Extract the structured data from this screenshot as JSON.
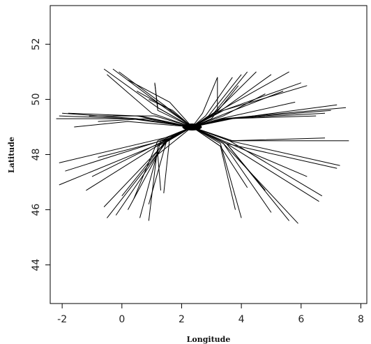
{
  "chart_data": {
    "type": "line",
    "title": "",
    "xlabel": "Longitude",
    "ylabel": "Latitude",
    "xlim": [
      -2.4,
      8.2
    ],
    "ylim": [
      42.6,
      53.4
    ],
    "xticks": [
      -2,
      0,
      2,
      4,
      6,
      8
    ],
    "yticks": [
      44,
      46,
      48,
      50,
      52
    ],
    "grid": false,
    "legend": "none",
    "line_color": "#000000",
    "hub": [
      2.35,
      49.0
    ],
    "series": [
      {
        "x": [
          2.35,
          1.2,
          -0.6
        ],
        "y": [
          49.0,
          49.7,
          51.1
        ]
      },
      {
        "x": [
          2.35,
          1.3,
          -0.3
        ],
        "y": [
          49.0,
          49.8,
          51.1
        ]
      },
      {
        "x": [
          2.35,
          1.4,
          -0.1
        ],
        "y": [
          49.0,
          49.8,
          51.0
        ]
      },
      {
        "x": [
          2.35,
          1.0,
          -0.5
        ],
        "y": [
          49.0,
          49.5,
          50.9
        ]
      },
      {
        "x": [
          2.35,
          1.6,
          0.2
        ],
        "y": [
          49.0,
          49.9,
          50.7
        ]
      },
      {
        "x": [
          2.35,
          1.5,
          0.5
        ],
        "y": [
          49.0,
          49.7,
          50.3
        ]
      },
      {
        "x": [
          2.35,
          1.7,
          0.9
        ],
        "y": [
          49.0,
          49.6,
          50.0
        ]
      },
      {
        "x": [
          2.35,
          1.2,
          1.1
        ],
        "y": [
          49.0,
          49.6,
          50.6
        ]
      },
      {
        "x": [
          2.35,
          0.5,
          -2.0
        ],
        "y": [
          49.0,
          49.3,
          49.5
        ]
      },
      {
        "x": [
          2.35,
          0.4,
          -2.1
        ],
        "y": [
          49.0,
          49.3,
          49.4
        ]
      },
      {
        "x": [
          2.35,
          0.2,
          -1.6
        ],
        "y": [
          49.0,
          49.2,
          49.0
        ]
      },
      {
        "x": [
          2.35,
          0.6,
          -1.1
        ],
        "y": [
          49.0,
          49.4,
          49.4
        ]
      },
      {
        "x": [
          2.35,
          0.8,
          -0.8
        ],
        "y": [
          49.0,
          49.3,
          49.2
        ]
      },
      {
        "x": [
          2.35,
          0.3,
          -2.2
        ],
        "y": [
          49.0,
          49.3,
          49.3
        ]
      },
      {
        "x": [
          2.35,
          0.5,
          -1.8
        ],
        "y": [
          49.0,
          49.4,
          49.5
        ]
      },
      {
        "x": [
          2.35,
          1.1,
          -0.3
        ],
        "y": [
          49.0,
          49.4,
          49.4
        ]
      },
      {
        "x": [
          2.35,
          1.7,
          -0.8
        ],
        "y": [
          49.0,
          48.6,
          47.9
        ]
      },
      {
        "x": [
          2.35,
          1.6,
          -1.9
        ],
        "y": [
          49.0,
          48.6,
          47.4
        ]
      },
      {
        "x": [
          2.35,
          1.5,
          -2.1
        ],
        "y": [
          49.0,
          48.5,
          46.9
        ]
      },
      {
        "x": [
          2.35,
          1.6,
          -1.2
        ],
        "y": [
          49.0,
          48.6,
          46.7
        ]
      },
      {
        "x": [
          2.35,
          1.6,
          -0.6
        ],
        "y": [
          49.0,
          48.6,
          46.1
        ]
      },
      {
        "x": [
          2.35,
          1.6,
          -0.5
        ],
        "y": [
          49.0,
          48.6,
          45.7
        ]
      },
      {
        "x": [
          2.35,
          1.5,
          -0.2
        ],
        "y": [
          49.0,
          48.5,
          45.8
        ]
      },
      {
        "x": [
          2.35,
          1.4,
          0.2
        ],
        "y": [
          49.0,
          48.4,
          46.0
        ]
      },
      {
        "x": [
          2.35,
          1.3,
          0.6
        ],
        "y": [
          49.0,
          48.5,
          45.7
        ]
      },
      {
        "x": [
          2.35,
          1.2,
          0.9
        ],
        "y": [
          49.0,
          48.3,
          45.6
        ]
      },
      {
        "x": [
          2.35,
          1.2,
          0.4
        ],
        "y": [
          49.0,
          48.5,
          46.4
        ]
      },
      {
        "x": [
          2.35,
          1.6,
          1.4
        ],
        "y": [
          49.0,
          48.6,
          46.6
        ]
      },
      {
        "x": [
          2.35,
          1.8,
          -2.1
        ],
        "y": [
          49.0,
          48.7,
          47.7
        ]
      },
      {
        "x": [
          2.35,
          1.6,
          -1.0
        ],
        "y": [
          49.0,
          48.6,
          47.2
        ]
      },
      {
        "x": [
          2.35,
          1.4,
          0.0
        ],
        "y": [
          49.0,
          48.4,
          46.5
        ]
      },
      {
        "x": [
          2.35,
          1.5,
          0.9
        ],
        "y": [
          49.0,
          48.5,
          46.2
        ]
      },
      {
        "x": [
          2.35,
          2.9,
          4.0
        ],
        "y": [
          49.0,
          49.4,
          50.9
        ]
      },
      {
        "x": [
          2.35,
          3.0,
          4.2
        ],
        "y": [
          49.0,
          49.4,
          51.0
        ]
      },
      {
        "x": [
          2.35,
          3.1,
          4.5
        ],
        "y": [
          49.0,
          49.5,
          51.0
        ]
      },
      {
        "x": [
          2.35,
          3.2,
          5.0
        ],
        "y": [
          49.0,
          49.5,
          50.9
        ]
      },
      {
        "x": [
          2.35,
          3.3,
          5.6
        ],
        "y": [
          49.0,
          49.6,
          51.0
        ]
      },
      {
        "x": [
          2.35,
          3.4,
          6.0
        ],
        "y": [
          49.0,
          49.6,
          50.6
        ]
      },
      {
        "x": [
          2.35,
          3.5,
          5.4
        ],
        "y": [
          49.0,
          49.5,
          50.3
        ]
      },
      {
        "x": [
          2.35,
          3.4,
          6.2
        ],
        "y": [
          49.0,
          49.6,
          50.5
        ]
      },
      {
        "x": [
          2.35,
          3.0,
          3.9
        ],
        "y": [
          49.0,
          49.3,
          50.5
        ]
      },
      {
        "x": [
          2.35,
          2.8,
          3.7
        ],
        "y": [
          49.0,
          49.4,
          50.8
        ]
      },
      {
        "x": [
          2.35,
          2.7,
          3.2
        ],
        "y": [
          49.0,
          49.5,
          50.8
        ]
      },
      {
        "x": [
          2.35,
          3.4,
          7.5
        ],
        "y": [
          49.0,
          49.3,
          49.7
        ]
      },
      {
        "x": [
          2.35,
          3.6,
          7.0
        ],
        "y": [
          49.0,
          49.3,
          49.6
        ]
      },
      {
        "x": [
          2.35,
          3.5,
          6.5
        ],
        "y": [
          49.0,
          49.3,
          49.4
        ]
      },
      {
        "x": [
          2.35,
          3.7,
          7.2
        ],
        "y": [
          49.0,
          49.3,
          49.8
        ]
      },
      {
        "x": [
          2.35,
          3.3,
          5.8
        ],
        "y": [
          49.0,
          49.3,
          49.9
        ]
      },
      {
        "x": [
          2.35,
          3.5,
          6.8
        ],
        "y": [
          49.0,
          49.3,
          49.5
        ]
      },
      {
        "x": [
          2.35,
          3.4,
          4.8
        ],
        "y": [
          49.0,
          49.4,
          50.2
        ]
      },
      {
        "x": [
          2.35,
          3.6,
          7.3
        ],
        "y": [
          49.0,
          48.5,
          47.6
        ]
      },
      {
        "x": [
          2.35,
          3.5,
          7.2
        ],
        "y": [
          49.0,
          48.4,
          47.5
        ]
      },
      {
        "x": [
          2.35,
          3.6,
          6.7
        ],
        "y": [
          49.0,
          48.5,
          46.5
        ]
      },
      {
        "x": [
          2.35,
          3.5,
          6.6
        ],
        "y": [
          49.0,
          48.4,
          46.3
        ]
      },
      {
        "x": [
          2.35,
          3.4,
          5.9
        ],
        "y": [
          49.0,
          48.4,
          45.5
        ]
      },
      {
        "x": [
          2.35,
          3.5,
          5.6
        ],
        "y": [
          49.0,
          48.4,
          45.6
        ]
      },
      {
        "x": [
          2.35,
          3.4,
          5.0
        ],
        "y": [
          49.0,
          48.4,
          45.9
        ]
      },
      {
        "x": [
          2.35,
          3.3,
          4.2
        ],
        "y": [
          49.0,
          48.3,
          46.8
        ]
      },
      {
        "x": [
          2.35,
          3.3,
          4.0
        ],
        "y": [
          49.0,
          48.4,
          45.7
        ]
      },
      {
        "x": [
          2.35,
          3.3,
          3.8
        ],
        "y": [
          49.0,
          48.3,
          46.0
        ]
      },
      {
        "x": [
          2.35,
          3.6,
          6.8
        ],
        "y": [
          49.0,
          48.5,
          48.6
        ]
      },
      {
        "x": [
          2.35,
          3.7,
          7.6
        ],
        "y": [
          49.0,
          48.5,
          48.5
        ]
      },
      {
        "x": [
          2.35,
          3.6,
          6.2
        ],
        "y": [
          49.0,
          48.4,
          47.2
        ]
      },
      {
        "x": [
          2.35,
          3.5,
          4.8
        ],
        "y": [
          49.0,
          48.4,
          46.7
        ]
      },
      {
        "x": [
          2.35,
          3.2,
          3.2
        ],
        "y": [
          49.0,
          49.6,
          50.8
        ]
      },
      {
        "x": [
          2.35,
          1.2,
          1.3
        ],
        "y": [
          49.0,
          48.0,
          46.7
        ]
      },
      {
        "x": [
          2.35,
          1.2,
          1.1
        ],
        "y": [
          49.0,
          49.7,
          50.6
        ]
      }
    ]
  }
}
